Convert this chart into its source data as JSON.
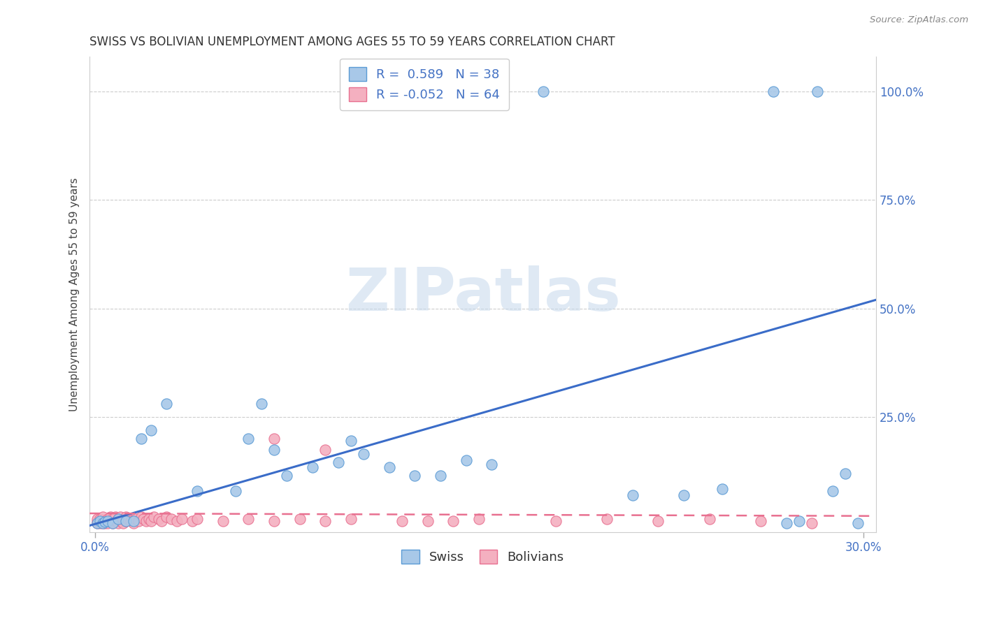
{
  "title": "SWISS VS BOLIVIAN UNEMPLOYMENT AMONG AGES 55 TO 59 YEARS CORRELATION CHART",
  "source": "Source: ZipAtlas.com",
  "ylabel": "Unemployment Among Ages 55 to 59 years",
  "ytick_labels": [
    "25.0%",
    "50.0%",
    "75.0%",
    "100.0%"
  ],
  "ytick_values": [
    0.25,
    0.5,
    0.75,
    1.0
  ],
  "xtick_labels": [
    "0.0%",
    "30.0%"
  ],
  "xtick_values": [
    0.0,
    0.3
  ],
  "xlim": [
    -0.002,
    0.305
  ],
  "ylim": [
    -0.015,
    1.08
  ],
  "swiss_face_color": "#a8c8e8",
  "swiss_edge_color": "#5b9bd5",
  "bolivian_face_color": "#f4b0c0",
  "bolivian_edge_color": "#e87090",
  "trend_swiss_color": "#3a6cc8",
  "trend_bolivian_color": "#e87090",
  "label_color": "#4472c4",
  "swiss_R": 0.589,
  "swiss_N": 38,
  "bolivian_R": -0.052,
  "bolivian_N": 64,
  "watermark": "ZIPatlas",
  "legend_label_swiss": "Swiss",
  "legend_label_bolivians": "Bolivians",
  "swiss_trend_y0": 0.0,
  "swiss_trend_y1": 0.52,
  "bolivian_trend_y0": 0.028,
  "bolivian_trend_y1": 0.022,
  "swiss_x": [
    0.001,
    0.002,
    0.003,
    0.004,
    0.005,
    0.007,
    0.009,
    0.012,
    0.015,
    0.018,
    0.022,
    0.028,
    0.04,
    0.055,
    0.06,
    0.065,
    0.07,
    0.075,
    0.085,
    0.095,
    0.1,
    0.105,
    0.115,
    0.125,
    0.135,
    0.145,
    0.155,
    0.175,
    0.21,
    0.23,
    0.245,
    0.265,
    0.27,
    0.275,
    0.282,
    0.288,
    0.293,
    0.298
  ],
  "swiss_y": [
    0.005,
    0.01,
    0.005,
    0.008,
    0.01,
    0.005,
    0.015,
    0.01,
    0.01,
    0.2,
    0.22,
    0.28,
    0.08,
    0.08,
    0.2,
    0.28,
    0.175,
    0.115,
    0.135,
    0.145,
    0.195,
    0.165,
    0.135,
    0.115,
    0.115,
    0.15,
    0.14,
    1.0,
    0.07,
    0.07,
    0.085,
    1.0,
    0.005,
    0.01,
    1.0,
    0.08,
    0.12,
    0.005
  ],
  "bolivian_x": [
    0.001,
    0.001,
    0.001,
    0.002,
    0.002,
    0.002,
    0.003,
    0.003,
    0.003,
    0.004,
    0.004,
    0.005,
    0.005,
    0.006,
    0.006,
    0.007,
    0.007,
    0.008,
    0.008,
    0.009,
    0.009,
    0.01,
    0.01,
    0.011,
    0.011,
    0.012,
    0.012,
    0.013,
    0.014,
    0.015,
    0.016,
    0.017,
    0.018,
    0.019,
    0.02,
    0.021,
    0.022,
    0.023,
    0.025,
    0.026,
    0.028,
    0.03,
    0.032,
    0.034,
    0.038,
    0.04,
    0.05,
    0.06,
    0.07,
    0.08,
    0.09,
    0.1,
    0.13,
    0.15,
    0.18,
    0.2,
    0.22,
    0.24,
    0.26,
    0.28,
    0.07,
    0.09,
    0.12,
    0.14
  ],
  "bolivian_y": [
    0.005,
    0.01,
    0.015,
    0.005,
    0.01,
    0.015,
    0.005,
    0.01,
    0.02,
    0.005,
    0.01,
    0.005,
    0.015,
    0.01,
    0.02,
    0.005,
    0.015,
    0.01,
    0.02,
    0.005,
    0.015,
    0.01,
    0.02,
    0.005,
    0.015,
    0.01,
    0.02,
    0.015,
    0.01,
    0.005,
    0.015,
    0.01,
    0.02,
    0.015,
    0.01,
    0.015,
    0.01,
    0.02,
    0.015,
    0.01,
    0.02,
    0.015,
    0.01,
    0.015,
    0.01,
    0.015,
    0.01,
    0.015,
    0.01,
    0.015,
    0.01,
    0.015,
    0.01,
    0.015,
    0.01,
    0.015,
    0.01,
    0.015,
    0.01,
    0.005,
    0.2,
    0.175,
    0.01,
    0.01
  ]
}
